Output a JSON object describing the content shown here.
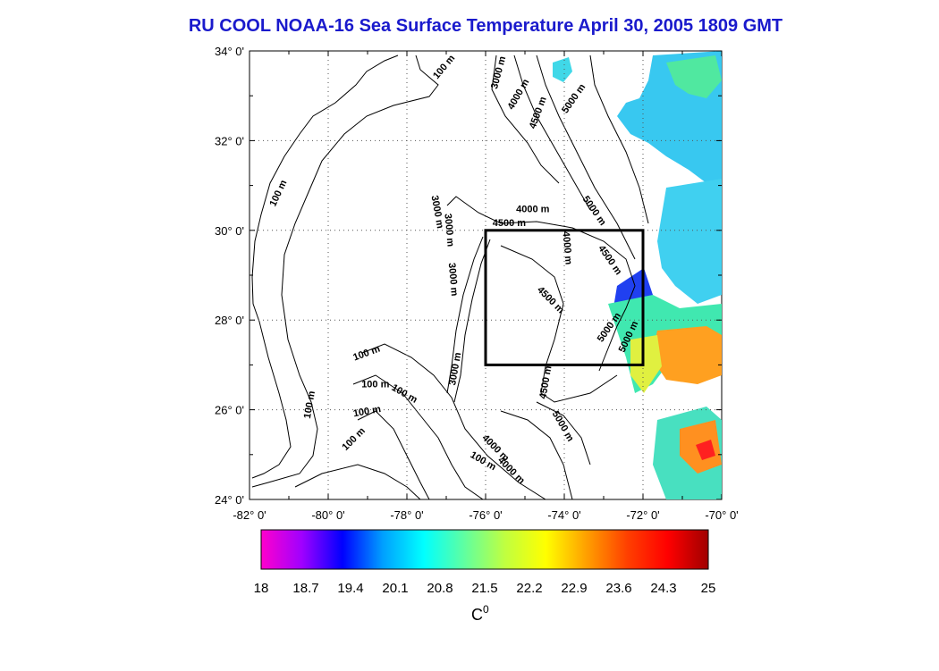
{
  "title": "RU COOL  NOAA-16 Sea Surface Temperature April 30, 2005 1809 GMT",
  "map": {
    "lon_ticks": [
      "-82° 0'",
      "-80° 0'",
      "-78° 0'",
      "-76° 0'",
      "-74° 0'",
      "-72° 0'",
      "-70° 0'"
    ],
    "lat_ticks": [
      "34° 0'",
      "32° 0'",
      "30° 0'",
      "28° 0'",
      "26° 0'",
      "24° 0'"
    ],
    "lon_range": [
      -82,
      -70
    ],
    "lat_range": [
      24,
      34
    ],
    "study_box": {
      "lon_min": -76,
      "lon_max": -72,
      "lat_min": 27,
      "lat_max": 30
    },
    "contour_labels": [
      {
        "text": "100 m",
        "lon": -77.0,
        "lat": 33.6,
        "rot": -50
      },
      {
        "text": "3000 m",
        "lon": -75.6,
        "lat": 33.5,
        "rot": -75
      },
      {
        "text": "4000 m",
        "lon": -75.1,
        "lat": 33.0,
        "rot": -60
      },
      {
        "text": "4500 m",
        "lon": -74.6,
        "lat": 32.6,
        "rot": -70
      },
      {
        "text": "5000 m",
        "lon": -73.7,
        "lat": 32.9,
        "rot": -55
      },
      {
        "text": "100 m",
        "lon": -81.2,
        "lat": 30.8,
        "rot": -65
      },
      {
        "text": "3000 m",
        "lon": -77.3,
        "lat": 30.4,
        "rot": 80
      },
      {
        "text": "4000 m",
        "lon": -74.8,
        "lat": 30.4,
        "rot": 0
      },
      {
        "text": "4500 m",
        "lon": -75.4,
        "lat": 30.1,
        "rot": 0
      },
      {
        "text": "5000 m",
        "lon": -73.3,
        "lat": 30.4,
        "rot": 55
      },
      {
        "text": "4000 m",
        "lon": -74.0,
        "lat": 29.6,
        "rot": 85
      },
      {
        "text": "4500 m",
        "lon": -72.9,
        "lat": 29.3,
        "rot": 55
      },
      {
        "text": "4500 m",
        "lon": -74.4,
        "lat": 28.4,
        "rot": 45
      },
      {
        "text": "5000 m",
        "lon": -72.8,
        "lat": 27.8,
        "rot": -55
      },
      {
        "text": "5000 m",
        "lon": -72.3,
        "lat": 27.6,
        "rot": -65
      },
      {
        "text": "100 m",
        "lon": -79.0,
        "lat": 27.2,
        "rot": -20
      },
      {
        "text": "100 m",
        "lon": -78.8,
        "lat": 26.5,
        "rot": 0
      },
      {
        "text": "100 m",
        "lon": -78.1,
        "lat": 26.3,
        "rot": 30
      },
      {
        "text": "3000 m",
        "lon": -76.7,
        "lat": 26.9,
        "rot": -80
      },
      {
        "text": "4500 m",
        "lon": -74.4,
        "lat": 26.6,
        "rot": -80
      },
      {
        "text": "100 m",
        "lon": -80.4,
        "lat": 26.1,
        "rot": -80
      },
      {
        "text": "100 m",
        "lon": -79.0,
        "lat": 25.9,
        "rot": -10
      },
      {
        "text": "100 m",
        "lon": -79.3,
        "lat": 25.3,
        "rot": -45
      },
      {
        "text": "5000 m",
        "lon": -74.1,
        "lat": 25.6,
        "rot": 60
      },
      {
        "text": "4000 m",
        "lon": -75.8,
        "lat": 25.1,
        "rot": 45
      },
      {
        "text": "100 m",
        "lon": -76.1,
        "lat": 24.8,
        "rot": 30
      },
      {
        "text": "4000 m",
        "lon": -75.4,
        "lat": 24.6,
        "rot": 45
      },
      {
        "text": "3000 m",
        "lon": -77.0,
        "lat": 30.0,
        "rot": 85
      },
      {
        "text": "3000 m",
        "lon": -76.9,
        "lat": 28.9,
        "rot": 85
      }
    ]
  },
  "colorbar": {
    "ticks": [
      "18",
      "18.7",
      "19.4",
      "20.1",
      "20.8",
      "21.5",
      "22.2",
      "22.9",
      "23.6",
      "24.3",
      "25"
    ],
    "unit": "C",
    "unit_sup": "0",
    "colors": [
      "#ff00cc",
      "#a000ff",
      "#0000ff",
      "#00a0ff",
      "#00ffff",
      "#60ffa0",
      "#c0ff40",
      "#ffff00",
      "#ffa000",
      "#ff4000",
      "#ff0000",
      "#a00000"
    ]
  },
  "colors": {
    "title": "#1a1acc",
    "box": "#000000"
  }
}
